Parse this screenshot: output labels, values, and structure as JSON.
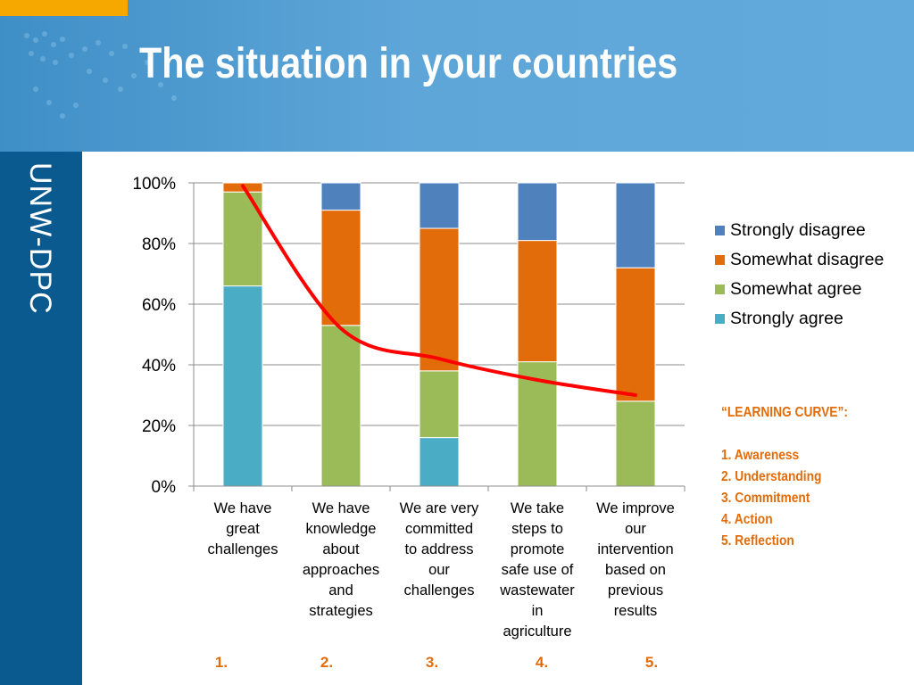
{
  "slide": {
    "title": "The situation in your countries",
    "brand": "UNW-DPC"
  },
  "colors": {
    "header": "#5aa5da",
    "sidebar": "#0a5a8f",
    "accent_orange": "#f6a800",
    "strongly_disagree": "#4f81bd",
    "somewhat_disagree": "#e36c0a",
    "somewhat_agree": "#9bbb59",
    "strongly_agree": "#4bacc6",
    "trend": "#ff0000"
  },
  "chart_data": {
    "type": "bar",
    "stacked": true,
    "percent": true,
    "categories": [
      [
        "We have",
        "great",
        "challenges"
      ],
      [
        "We have",
        "knowledge",
        "about",
        "approaches",
        "and",
        "strategies"
      ],
      [
        "We are very",
        "committed",
        "to address",
        "our",
        "challenges"
      ],
      [
        "We take",
        "steps to",
        "promote",
        "safe use of",
        "wastewater",
        "in",
        "agriculture"
      ],
      [
        "We improve",
        "our",
        "intervention",
        "based on",
        "previous",
        "results"
      ]
    ],
    "category_numbers": [
      "1.",
      "2.",
      "3.",
      "4.",
      "5."
    ],
    "yticks": [
      "0%",
      "20%",
      "40%",
      "60%",
      "80%",
      "100%"
    ],
    "ylim": [
      0,
      100
    ],
    "grid": true,
    "legend_position": "right",
    "series": [
      {
        "name": "Strongly agree",
        "color": "#4bacc6",
        "values": [
          66,
          0,
          16,
          0,
          0
        ]
      },
      {
        "name": "Somewhat agree",
        "color": "#9bbb59",
        "values": [
          31,
          53,
          22,
          41,
          28
        ]
      },
      {
        "name": "Somewhat disagree",
        "color": "#e36c0a",
        "values": [
          3,
          38,
          47,
          40,
          44
        ]
      },
      {
        "name": "Strongly disagree",
        "color": "#4f81bd",
        "values": [
          0,
          9,
          15,
          19,
          28
        ]
      }
    ],
    "legend_order": [
      "Strongly disagree",
      "Somewhat disagree",
      "Somewhat agree",
      "Strongly agree"
    ],
    "trend": {
      "type": "learning-curve",
      "color": "#ff0000",
      "values": [
        99,
        52,
        42,
        35,
        30
      ]
    }
  },
  "note": {
    "title": "“LEARNING CURVE”:",
    "items": [
      "1. Awareness",
      "2. Understanding",
      "3. Commitment",
      "4. Action",
      "5. Reflection"
    ]
  }
}
